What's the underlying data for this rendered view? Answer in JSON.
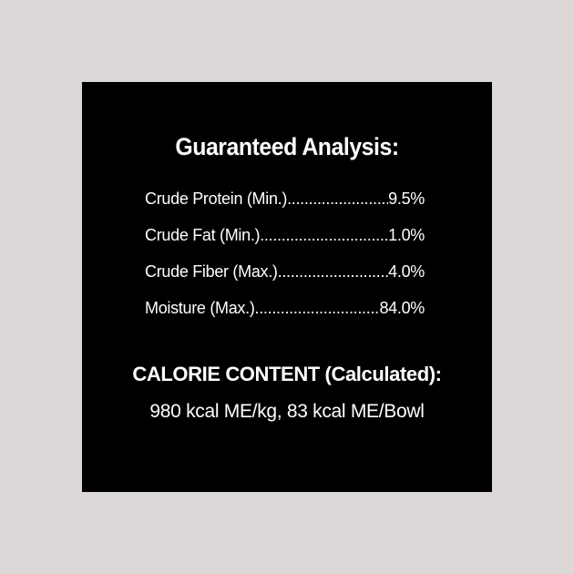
{
  "title": "Guaranteed Analysis:",
  "analysis": [
    {
      "label": "Crude Protein (Min.)",
      "value": "9.5%"
    },
    {
      "label": "Crude Fat (Min.)",
      "value": "1.0%"
    },
    {
      "label": "Crude Fiber (Max.)",
      "value": "4.0%"
    },
    {
      "label": "Moisture (Max.)",
      "value": "84.0%"
    }
  ],
  "calorie": {
    "title": "CALORIE CONTENT (Calculated):",
    "text": "980 kcal ME/kg, 83 kcal ME/Bowl"
  },
  "colors": {
    "background": "#dcd8d8",
    "panel": "#000000",
    "text": "#ffffff"
  }
}
